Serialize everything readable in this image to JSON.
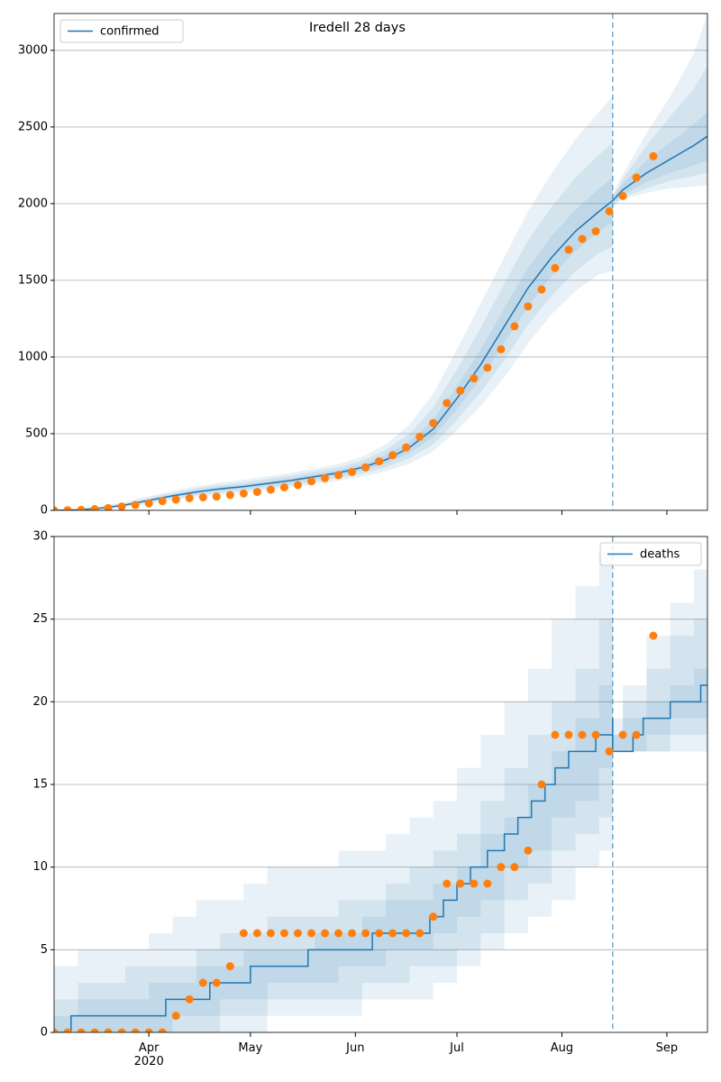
{
  "chart_data": [
    {
      "type": "line",
      "title": "Iredell 28 days",
      "xlim": [
        "2020-03-04",
        "2020-09-13"
      ],
      "ylim": [
        0,
        3240
      ],
      "xticks": [
        "2020-04-01",
        "2020-05-01",
        "2020-06-01",
        "2020-07-01",
        "2020-08-01",
        "2020-09-01"
      ],
      "yticks": [
        0,
        500,
        1000,
        1500,
        2000,
        2500,
        3000
      ],
      "grid": true,
      "legend": "upper left",
      "vline": "2020-08-16",
      "series": [
        {
          "name": "confirmed",
          "color": "#1f77b4",
          "x": [
            "2020-03-04",
            "2020-03-11",
            "2020-03-18",
            "2020-03-25",
            "2020-04-01",
            "2020-04-08",
            "2020-04-15",
            "2020-04-22",
            "2020-04-29",
            "2020-05-06",
            "2020-05-13",
            "2020-05-20",
            "2020-05-27",
            "2020-06-03",
            "2020-06-10",
            "2020-06-17",
            "2020-06-24",
            "2020-07-01",
            "2020-07-08",
            "2020-07-15",
            "2020-07-22",
            "2020-07-29",
            "2020-08-05",
            "2020-08-12",
            "2020-08-16",
            "2020-08-19",
            "2020-08-26",
            "2020-09-02",
            "2020-09-09",
            "2020-09-13"
          ],
          "values": [
            0,
            3,
            15,
            35,
            65,
            95,
            120,
            140,
            155,
            175,
            195,
            220,
            245,
            280,
            330,
            410,
            530,
            730,
            950,
            1200,
            1450,
            1650,
            1820,
            1950,
            2020,
            2090,
            2200,
            2290,
            2380,
            2440
          ]
        }
      ],
      "observed": {
        "color": "#ff7f0e",
        "x": [
          "2020-03-04",
          "2020-03-08",
          "2020-03-12",
          "2020-03-16",
          "2020-03-20",
          "2020-03-24",
          "2020-03-28",
          "2020-04-01",
          "2020-04-05",
          "2020-04-09",
          "2020-04-13",
          "2020-04-17",
          "2020-04-21",
          "2020-04-25",
          "2020-04-29",
          "2020-05-03",
          "2020-05-07",
          "2020-05-11",
          "2020-05-15",
          "2020-05-19",
          "2020-05-23",
          "2020-05-27",
          "2020-05-31",
          "2020-06-04",
          "2020-06-08",
          "2020-06-12",
          "2020-06-16",
          "2020-06-20",
          "2020-06-24",
          "2020-06-28",
          "2020-07-02",
          "2020-07-06",
          "2020-07-10",
          "2020-07-14",
          "2020-07-18",
          "2020-07-22",
          "2020-07-26",
          "2020-07-30",
          "2020-08-03",
          "2020-08-07",
          "2020-08-11",
          "2020-08-15",
          "2020-08-19",
          "2020-08-23",
          "2020-08-28"
        ],
        "values": [
          0,
          1,
          3,
          8,
          15,
          25,
          35,
          45,
          60,
          70,
          80,
          85,
          90,
          100,
          110,
          120,
          135,
          150,
          165,
          190,
          210,
          230,
          250,
          280,
          320,
          360,
          410,
          480,
          570,
          700,
          780,
          860,
          930,
          1050,
          1200,
          1330,
          1440,
          1580,
          1700,
          1770,
          1820,
          1950,
          2050,
          2170,
          2310
        ]
      },
      "band_color": "#1f77b4",
      "band_alpha": 0.1,
      "fit": {
        "x": [
          "2020-03-04",
          "2020-03-11",
          "2020-03-18",
          "2020-03-25",
          "2020-04-01",
          "2020-04-08",
          "2020-04-15",
          "2020-04-22",
          "2020-04-29",
          "2020-05-06",
          "2020-05-13",
          "2020-05-20",
          "2020-05-27",
          "2020-06-03",
          "2020-06-10",
          "2020-06-17",
          "2020-06-24",
          "2020-07-01",
          "2020-07-08",
          "2020-07-15",
          "2020-07-22",
          "2020-07-29",
          "2020-08-05",
          "2020-08-12",
          "2020-08-16"
        ],
        "bands": [
          {
            "lower": [
              0,
              0,
              7,
              20,
              42,
              66,
              86,
              102,
              114,
              131,
              148,
              170,
              192,
              218,
              255,
              305,
              385,
              520,
              680,
              870,
              1090,
              1280,
              1430,
              1540,
              1560
            ],
            "upper": [
              5,
              12,
              28,
              55,
              92,
              127,
              157,
              181,
              199,
              222,
              245,
              273,
              302,
              350,
              430,
              560,
              760,
              1050,
              1350,
              1650,
              1950,
              2200,
              2420,
              2600,
              2700
            ]
          },
          {
            "lower": [
              0,
              1,
              10,
              25,
              50,
              76,
              98,
              115,
              128,
              146,
              164,
              187,
              210,
              240,
              280,
              340,
              430,
              590,
              770,
              980,
              1210,
              1400,
              1560,
              1680,
              1720
            ],
            "upper": [
              0,
              8,
              22,
              47,
              82,
              115,
              143,
              166,
              183,
              205,
              227,
              254,
              281,
              325,
              395,
              500,
              670,
              920,
              1190,
              1480,
              1760,
              1980,
              2170,
              2320,
              2400
            ]
          },
          {
            "lower": [
              0,
              2,
              12,
              30,
              58,
              86,
              110,
              128,
              142,
              161,
              180,
              204,
              228,
              260,
              305,
              375,
              480,
              660,
              860,
              1090,
              1330,
              1530,
              1690,
              1820,
              1880
            ],
            "upper": [
              0,
              5,
              18,
              40,
              72,
              104,
              130,
              152,
              168,
              189,
              210,
              236,
              262,
              300,
              360,
              450,
              590,
              810,
              1050,
              1320,
              1580,
              1790,
              1960,
              2100,
              2170
            ]
          }
        ]
      },
      "forecast": {
        "x": [
          "2020-08-16",
          "2020-08-19",
          "2020-08-26",
          "2020-09-02",
          "2020-09-09",
          "2020-09-13"
        ],
        "bands": [
          {
            "lower": [
              1980,
              2030,
              2070,
              2100,
              2110,
              2120
            ],
            "upper": [
              2060,
              2190,
              2460,
              2700,
              2980,
              3240
            ]
          },
          {
            "lower": [
              1990,
              2040,
              2100,
              2150,
              2180,
              2200
            ],
            "upper": [
              2050,
              2160,
              2380,
              2570,
              2750,
              2900
            ]
          },
          {
            "lower": [
              2000,
              2060,
              2140,
              2200,
              2250,
              2280
            ],
            "upper": [
              2040,
              2130,
              2280,
              2400,
              2520,
              2600
            ]
          }
        ]
      }
    },
    {
      "type": "step",
      "xlim": [
        "2020-03-04",
        "2020-09-13"
      ],
      "ylim": [
        0,
        30
      ],
      "xticks": [
        {
          "value": "2020-04-01",
          "label": "Apr 2020"
        },
        {
          "value": "2020-05-01",
          "label": "May"
        },
        {
          "value": "2020-06-01",
          "label": "Jun"
        },
        {
          "value": "2020-07-01",
          "label": "Jul"
        },
        {
          "value": "2020-08-01",
          "label": "Aug"
        },
        {
          "value": "2020-09-01",
          "label": "Sep"
        }
      ],
      "yticks": [
        0,
        5,
        10,
        15,
        20,
        25,
        30
      ],
      "grid": true,
      "legend": "upper right",
      "vline": "2020-08-16",
      "series": [
        {
          "name": "deaths",
          "color": "#1f77b4",
          "x": [
            "2020-03-04",
            "2020-03-09",
            "2020-04-06",
            "2020-04-19",
            "2020-05-01",
            "2020-05-18",
            "2020-06-06",
            "2020-06-23",
            "2020-06-27",
            "2020-07-01",
            "2020-07-05",
            "2020-07-10",
            "2020-07-15",
            "2020-07-19",
            "2020-07-23",
            "2020-07-27",
            "2020-07-30",
            "2020-08-03",
            "2020-08-11",
            "2020-08-16",
            "2020-08-16",
            "2020-08-22",
            "2020-08-25",
            "2020-09-02",
            "2020-09-11",
            "2020-09-13"
          ],
          "values": [
            0,
            1,
            2,
            3,
            4,
            5,
            6,
            7,
            8,
            9,
            10,
            11,
            12,
            13,
            14,
            15,
            16,
            17,
            18,
            19,
            17,
            18,
            19,
            20,
            21,
            21
          ]
        }
      ],
      "observed": {
        "color": "#ff7f0e",
        "x": [
          "2020-03-04",
          "2020-03-08",
          "2020-03-12",
          "2020-03-16",
          "2020-03-20",
          "2020-03-24",
          "2020-03-28",
          "2020-04-01",
          "2020-04-05",
          "2020-04-09",
          "2020-04-13",
          "2020-04-17",
          "2020-04-21",
          "2020-04-25",
          "2020-04-29",
          "2020-05-03",
          "2020-05-07",
          "2020-05-11",
          "2020-05-15",
          "2020-05-19",
          "2020-05-23",
          "2020-05-27",
          "2020-05-31",
          "2020-06-04",
          "2020-06-08",
          "2020-06-12",
          "2020-06-16",
          "2020-06-20",
          "2020-06-24",
          "2020-06-28",
          "2020-07-02",
          "2020-07-06",
          "2020-07-10",
          "2020-07-14",
          "2020-07-18",
          "2020-07-22",
          "2020-07-26",
          "2020-07-30",
          "2020-08-03",
          "2020-08-07",
          "2020-08-11",
          "2020-08-15",
          "2020-08-19",
          "2020-08-23",
          "2020-08-28"
        ],
        "values": [
          0,
          0,
          0,
          0,
          0,
          0,
          0,
          0,
          0,
          1,
          2,
          3,
          3,
          4,
          6,
          6,
          6,
          6,
          6,
          6,
          6,
          6,
          6,
          6,
          6,
          6,
          6,
          6,
          7,
          9,
          9,
          9,
          9,
          10,
          10,
          11,
          15,
          18,
          18,
          18,
          18,
          17,
          18,
          18,
          24
        ]
      },
      "band_color": "#1f77b4",
      "band_alpha": 0.1,
      "fit": {
        "x": [
          "2020-03-04",
          "2020-03-11",
          "2020-03-18",
          "2020-03-25",
          "2020-04-01",
          "2020-04-08",
          "2020-04-15",
          "2020-04-22",
          "2020-04-29",
          "2020-05-06",
          "2020-05-13",
          "2020-05-20",
          "2020-05-27",
          "2020-06-03",
          "2020-06-10",
          "2020-06-17",
          "2020-06-24",
          "2020-07-01",
          "2020-07-08",
          "2020-07-15",
          "2020-07-22",
          "2020-07-29",
          "2020-08-05",
          "2020-08-12",
          "2020-08-16"
        ],
        "bands": [
          {
            "lower": [
              0,
              0,
              0,
              0,
              0,
              0,
              0,
              0,
              0,
              1,
              1,
              1,
              1,
              2,
              2,
              2,
              3,
              4,
              5,
              6,
              7,
              8,
              10,
              11,
              12
            ],
            "upper": [
              4,
              5,
              5,
              5,
              6,
              7,
              8,
              8,
              9,
              10,
              10,
              10,
              11,
              11,
              12,
              13,
              14,
              16,
              18,
              20,
              22,
              25,
              27,
              29,
              30
            ]
          },
          {
            "lower": [
              0,
              0,
              0,
              0,
              0,
              0,
              0,
              1,
              1,
              2,
              2,
              2,
              2,
              3,
              3,
              4,
              4,
              5,
              6,
              8,
              9,
              11,
              12,
              13,
              14
            ],
            "upper": [
              2,
              3,
              3,
              4,
              4,
              4,
              5,
              6,
              6,
              7,
              7,
              7,
              8,
              8,
              9,
              10,
              11,
              12,
              14,
              16,
              18,
              20,
              22,
              25,
              26
            ]
          },
          {
            "lower": [
              0,
              0,
              0,
              0,
              0,
              1,
              1,
              2,
              2,
              3,
              3,
              3,
              4,
              4,
              5,
              5,
              6,
              7,
              8,
              10,
              11,
              13,
              14,
              16,
              16
            ],
            "upper": [
              1,
              2,
              2,
              2,
              3,
              3,
              4,
              4,
              5,
              5,
              5,
              6,
              6,
              7,
              8,
              8,
              9,
              10,
              12,
              13,
              15,
              17,
              19,
              21,
              22
            ]
          }
        ]
      },
      "forecast": {
        "x": [
          "2020-08-16",
          "2020-08-19",
          "2020-08-26",
          "2020-09-02",
          "2020-09-09",
          "2020-09-13"
        ],
        "bands": [
          {
            "lower": [
              17,
              17,
              17,
              17,
              17,
              17
            ],
            "upper": [
              19,
              21,
              24,
              26,
              28,
              30
            ]
          },
          {
            "lower": [
              17,
              17,
              17,
              18,
              18,
              19
            ],
            "upper": [
              18,
              20,
              22,
              24,
              25,
              25
            ]
          },
          {
            "lower": [
              17,
              17,
              18,
              19,
              19,
              20
            ],
            "upper": [
              18,
              19,
              20,
              21,
              22,
              23
            ]
          }
        ]
      }
    }
  ]
}
